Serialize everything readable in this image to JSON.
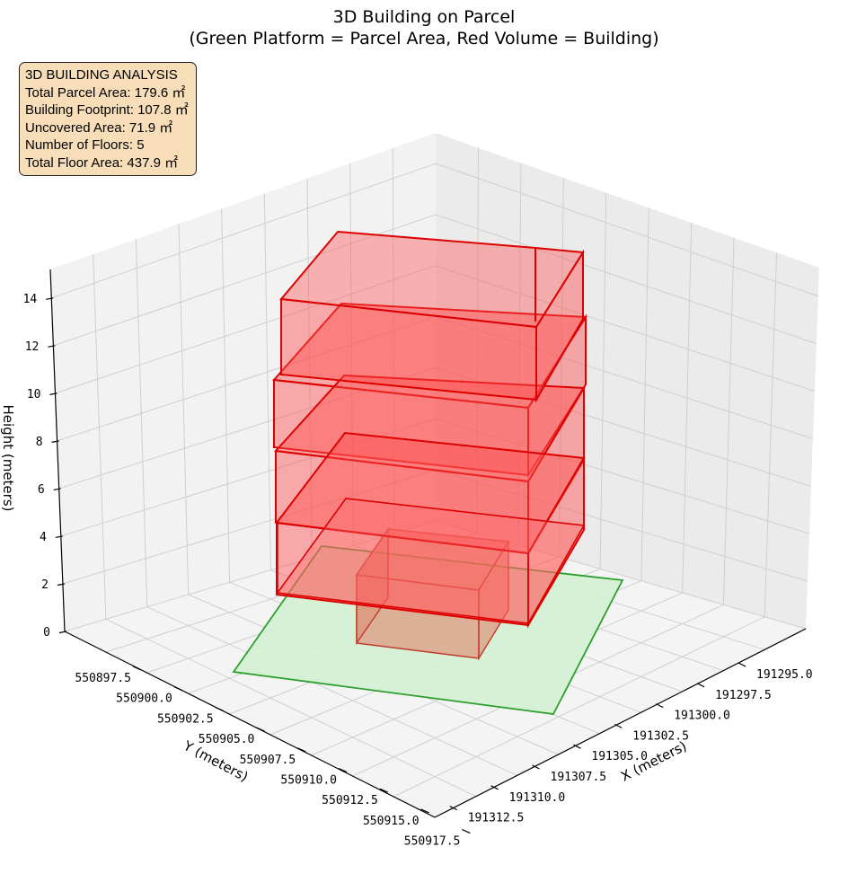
{
  "chart_data": {
    "type": "3d-polygons",
    "title": "3D Building on Parcel",
    "subtitle": "(Green Platform = Parcel Area, Red Volume = Building)",
    "xlabel": "X (meters)",
    "ylabel": "Y (meters)",
    "zlabel": "Height (meters)",
    "x_ticks": [
      "191295.0",
      "191297.5",
      "191300.0",
      "191302.5",
      "191305.0",
      "191307.5",
      "191310.0",
      "191312.5"
    ],
    "y_ticks": [
      "550897.5",
      "550900.0",
      "550902.5",
      "550905.0",
      "550907.5",
      "550910.0",
      "550912.5",
      "550915.0",
      "550917.5"
    ],
    "z_ticks": [
      "0",
      "2",
      "4",
      "6",
      "8",
      "10",
      "12",
      "14"
    ],
    "grid": true,
    "parcel": {
      "name": "Parcel Area",
      "color": "#2ca02c",
      "fill": "#d4f1d4"
    },
    "building": {
      "name": "Building",
      "color": "#dd0000",
      "fill": "#ff4d4d"
    },
    "floors": 5
  },
  "info_box": {
    "title": "3D BUILDING ANALYSIS",
    "lines": [
      "Total Parcel Area: 179.6 ㎡",
      "Building Footprint: 107.8 ㎡",
      "Uncovered Area: 71.9 ㎡",
      "Number of Floors: 5",
      "Total Floor Area: 437.9 ㎡"
    ]
  }
}
